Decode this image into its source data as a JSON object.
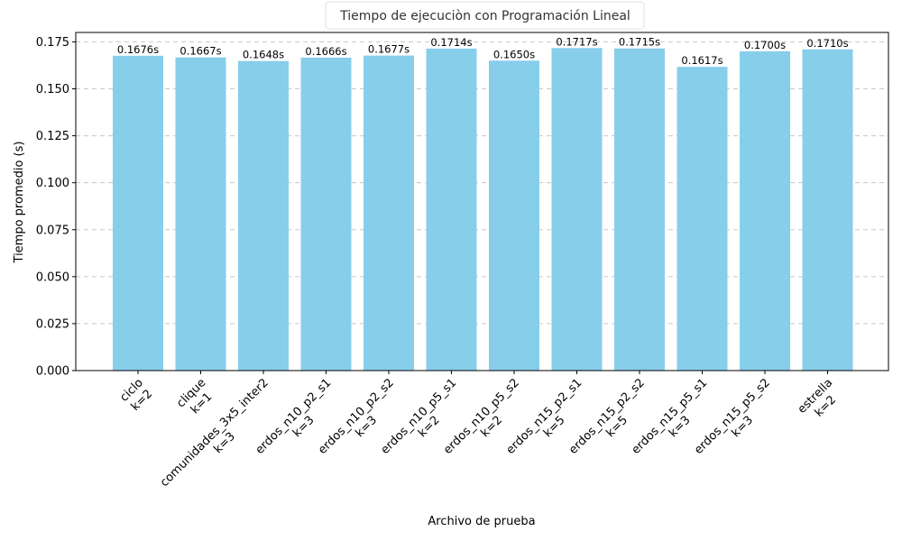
{
  "chart_data": {
    "type": "bar",
    "title": "Tiempo de ejecuciòn con Programación Lineal",
    "xlabel": "Archivo de prueba",
    "ylabel": "Tiempo promedio (s)",
    "ylim": [
      0,
      0.18
    ],
    "yticks": [
      "0.000",
      "0.025",
      "0.050",
      "0.075",
      "0.100",
      "0.125",
      "0.150",
      "0.175"
    ],
    "grid": "y-dashed",
    "color": "#87ceeb",
    "categories": [
      {
        "name": "ciclo",
        "k": "k=2"
      },
      {
        "name": "clique",
        "k": "k=1"
      },
      {
        "name": "comunidades_3x5_inter2",
        "k": "k=3"
      },
      {
        "name": "erdos_n10_p2_s1",
        "k": "k=3"
      },
      {
        "name": "erdos_n10_p2_s2",
        "k": "k=3"
      },
      {
        "name": "erdos_n10_p5_s1",
        "k": "k=2"
      },
      {
        "name": "erdos_n10_p5_s2",
        "k": "k=2"
      },
      {
        "name": "erdos_n15_p2_s1",
        "k": "k=5"
      },
      {
        "name": "erdos_n15_p2_s2",
        "k": "k=5"
      },
      {
        "name": "erdos_n15_p5_s1",
        "k": "k=3"
      },
      {
        "name": "erdos_n15_p5_s2",
        "k": "k=3"
      },
      {
        "name": "estrella",
        "k": "k=2"
      }
    ],
    "values": [
      0.1676,
      0.1667,
      0.1648,
      0.1666,
      0.1677,
      0.1714,
      0.165,
      0.1717,
      0.1715,
      0.1617,
      0.17,
      0.171
    ],
    "data_labels": [
      "0.1676s",
      "0.1667s",
      "0.1648s",
      "0.1666s",
      "0.1677s",
      "0.1714s",
      "0.1650s",
      "0.1717s",
      "0.1715s",
      "0.1617s",
      "0.1700s",
      "0.1710s"
    ]
  }
}
